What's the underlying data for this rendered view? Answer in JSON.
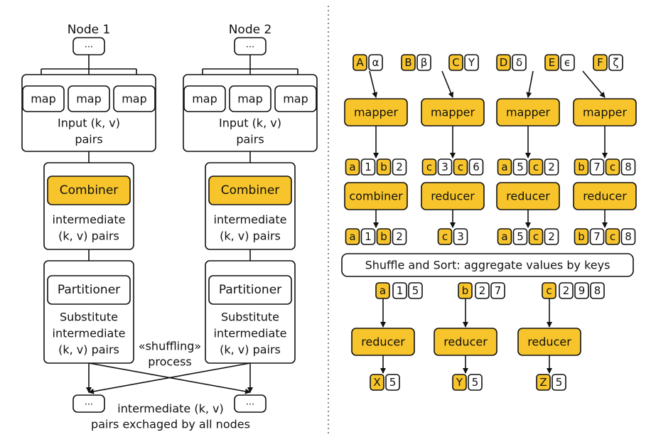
{
  "left": {
    "nodes": [
      {
        "title": "Node 1",
        "input_placeholder": "...",
        "maps": [
          "map",
          "map",
          "map"
        ],
        "input_label": [
          "Input (k, v)",
          "pairs"
        ],
        "combiner": "Combiner",
        "combiner_label": [
          "intermediate",
          "(k, v) pairs"
        ],
        "partitioner": "Partitioner",
        "partitioner_label": [
          "Substitute",
          "intermediate",
          "(k, v) pairs"
        ],
        "output_placeholder": "..."
      },
      {
        "title": "Node 2",
        "input_placeholder": "...",
        "maps": [
          "map",
          "map",
          "map"
        ],
        "input_label": [
          "Input (k, v)",
          "pairs"
        ],
        "combiner": "Combiner",
        "combiner_label": [
          "intermediate",
          "(k, v) pairs"
        ],
        "partitioner": "Partitioner",
        "partitioner_label": [
          "Substitute",
          "intermediate",
          "(k, v) pairs"
        ],
        "output_placeholder": "..."
      }
    ],
    "shuffling_label": [
      "«shuffling»",
      "process"
    ],
    "exchange_label": [
      "intermediate (k, v)",
      "pairs exchaged by all nodes"
    ]
  },
  "right": {
    "inputs": [
      {
        "key": "A",
        "value": "α"
      },
      {
        "key": "B",
        "value": "β"
      },
      {
        "key": "C",
        "value": "Y"
      },
      {
        "key": "D",
        "value": "δ"
      },
      {
        "key": "E",
        "value": "ϵ"
      },
      {
        "key": "F",
        "value": "ζ"
      }
    ],
    "mappers": [
      "mapper",
      "mapper",
      "mapper",
      "mapper"
    ],
    "mapper_outputs": [
      [
        "a",
        "1",
        "b",
        "2"
      ],
      [
        "c",
        "3",
        "c",
        "6"
      ],
      [
        "a",
        "5",
        "c",
        "2"
      ],
      [
        "b",
        "7",
        "c",
        "8"
      ]
    ],
    "stage2": [
      "combiner",
      "reducer",
      "reducer",
      "reducer"
    ],
    "stage2_outputs": [
      [
        "a",
        "1",
        "b",
        "2"
      ],
      [
        "c",
        "3"
      ],
      [
        "a",
        "5",
        "c",
        "2"
      ],
      [
        "b",
        "7",
        "c",
        "8"
      ]
    ],
    "shuffle_label": "Shuffle and Sort: aggregate values by keys",
    "groups": [
      {
        "key": "a",
        "values": [
          "1",
          "5"
        ]
      },
      {
        "key": "b",
        "values": [
          "2",
          "7"
        ]
      },
      {
        "key": "c",
        "values": [
          "2",
          "9",
          "8"
        ]
      }
    ],
    "final_reducers": [
      "reducer",
      "reducer",
      "reducer"
    ],
    "results": [
      {
        "key": "X",
        "value": "5"
      },
      {
        "key": "Y",
        "value": "5"
      },
      {
        "key": "Z",
        "value": "5"
      }
    ]
  },
  "colors": {
    "accent": "#f7c52b",
    "stroke": "#111111",
    "background": "#ffffff"
  }
}
